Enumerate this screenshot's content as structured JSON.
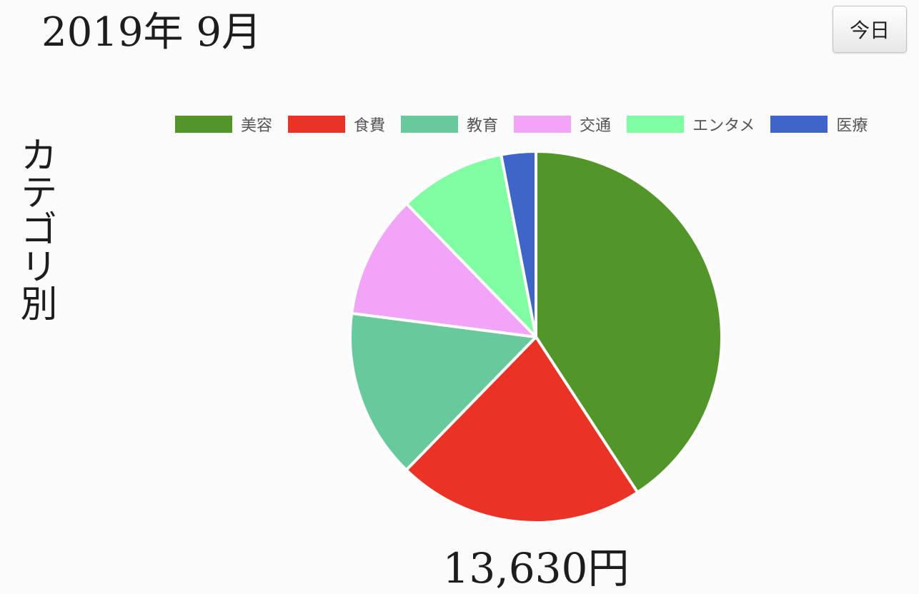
{
  "header": {
    "month_title": "2019年 9月",
    "today_button_label": "今日"
  },
  "sidebar": {
    "title": "カテゴリ別"
  },
  "colors": {
    "slice_border": "#ffffff"
  },
  "chart_data": {
    "type": "pie",
    "title": "",
    "legend_position": "top",
    "categories": [
      "美容",
      "食費",
      "教育",
      "交通",
      "エンタメ",
      "医療"
    ],
    "values": [
      5560,
      2930,
      2010,
      1460,
      1260,
      410
    ],
    "colors": [
      "#529629",
      "#ea3325",
      "#68ca9c",
      "#f1a4f8",
      "#80fca3",
      "#3f65c8"
    ],
    "total_label": "13,630円"
  }
}
